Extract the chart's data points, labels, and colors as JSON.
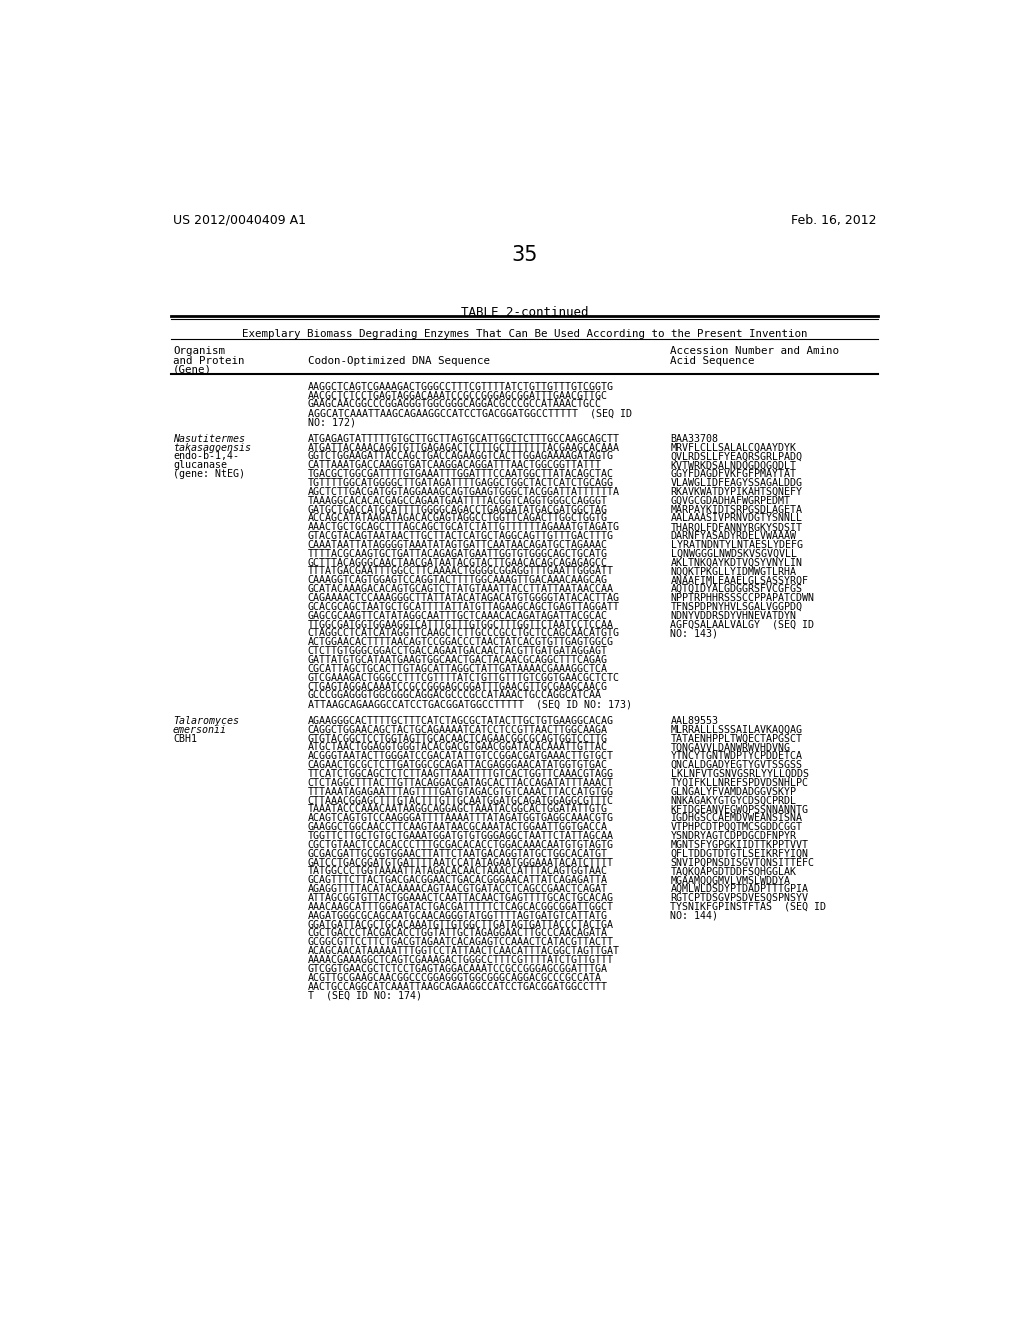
{
  "page_number": "35",
  "header_left": "US 2012/0040409 A1",
  "header_right": "Feb. 16, 2012",
  "table_title": "TABLE 2-continued",
  "table_subtitle": "Exemplary Biomass Degrading Enzymes That Can Be Used According to the Present Invention",
  "dna_lines_0": [
    "AAGGCTCAGTCGAAAGACTGGGCCTTTCGTTTTATCTGTTGTTTGTCGGTG",
    "AACGCTCTCCTGAGTAGGACAAATCCGCCGGGAGCGGATTTGAACGTTGC",
    "GAAGCAACGGCCCGGAGGGTGGCGGGCAGGACGCCCGCCATAAACTGCC",
    "AGGCATCAAATTAAGCAGAAGGCCATCCTGACGGATGGCCTTTTT  (SEQ ID",
    "NO: 172)"
  ],
  "org_2": [
    "Nasutitermes",
    "takasagoensis",
    "endo-b-1,4-",
    "glucanase",
    "(gene: NtEG)"
  ],
  "org_2_italic": [
    true,
    true,
    false,
    false,
    false
  ],
  "dna_lines_2": [
    "ATGAGAGTATTTTTGTGCTTGCTTAGTGCATTGGCTCTTTGCCAAGCAGCTT",
    "ATGATTACAAACAGGTGTTGAGAGACTCTTTGCTTTTTTTACGAAGCACAAA",
    "GGTCTGGAAGATTACCAGCTGACCAGAAGGTCACTTGGAGAAAAGATAGTG",
    "CATTAAATGACCAAGGTGATCAAGGACAGGATTTAACTGGCGGTTATTT",
    "TGACGCTGGCGATTTTGTGAAATTTGGATTTCCAATGGCTTATACAGCTAC",
    "TGTTTTGGCATGGGGCTTGATAGATTTTGAGGCTGGCTACTCATCTGCAGG",
    "AGCTCTTGACGATGGTAGGAAAGCAGTGAAGTGGGCTACGGATTATTTTTTA",
    "TAAAGGCACACACGAGCCAGAATGAATTTTACGGTCAGGTGGGCCAGGGT",
    "GATGCTGACCATGCATTTTGGGGCAGACCTGAGGATATGACGATGGCTAG",
    "ACCAGCATATAAGATAGACACGAGTAGGCCTGGTTCAGACTTGGCTGGTG",
    "AAACTGCTGCAGCTTTAGCAGCTGCATCTATTGTTTTTTAGAAATGTAGATG",
    "GTACGTACAGTAATAACTTGCTTACTCATGCTAGGCAGTTGTTTGACTTTG",
    "CAAATAATTATAGGGGTAAATATAGTGATTCAATAACAGATGCTAGAAAC",
    "TTTTACGCAAGTGCTGATTACAGAGATGAATTGGTGTGGGCAGCTGCATG",
    "GCTTTACAGGGCAACTAACGATAATACGTACTTGAACACAGCAGAGAGCC",
    "TTTATGACGAATTTGGCCTTCAAAACTGGGGCGGAGGTTTGAATTGGGATT",
    "CAAAGGTCAGTGGAGTCCAGGTACTTTTGGCAAAGTTGACAAACAAGCAG",
    "GCATACAAAGACACAGTGCAGTCTTATGTAAATTACCTTATTAATAACCAA",
    "CAGAAAACTCCAAAGGGCTTATTATACATAGACATGTGGGGTATACACTTAG",
    "GCACGCAGCTAATGCTGCATTTTATTATGTTAGAAGCAGCTGAGTTAGGATT",
    "GAGCGCAAGTTCATATAGGCAATTTGCTCAAACACAGATAGATTACGCAC",
    "TTGGCGATGGTGGAAGGTCATTTGTTTGTGGCTTTGGTTCTAATCCTCCAA",
    "CTAGGCCTCATCATAGGTTCAAGCTCTTGCCCGCCTGCTCCAGCAACATGTG",
    "ACTGGAACACTTTTAACAGTCCGGACCCTAACTATCACGTGTTGAGTGGCG",
    "CTCTTGTGGGCGGACCTGACCAGAATGACAACTACGTTGATGATAGGAGT",
    "GATTATGTGCATAATGAAGTGGCAACTGACTACAACGCAGGCTTTCAGAG",
    "CGCATTAGCTGCACTTGTAGCATTAGGCTATTGATAAAACGAAAGGCTCA",
    "GTCGAAAGACTGGGCCTTTCGTTTTATCTGTTGTTTGTCGGTGAACGCTCTC",
    "CTGAGTAGGACAAATCCGCCGGGAGCGGATTTGAACGTTGCGAAGCAACG",
    "GCCCGGAGGGTGGCGGGCAGGACGCCCGCCATAAACTGCCAGGCATCAA",
    "ATTAAGCAGAAGGCCATCCTGACGGATGGCCTTTTT  (SEQ ID NO: 173)"
  ],
  "acc_lines_2": [
    "BAA33708",
    "MRVFLCLLSALALCQAAYDYK",
    "QVLRDSLLFYEAQRSGRLPADQ",
    "KVTWRKDSALNDQGDQGQDLT",
    "GGYFDAGDFVKFGFPMAYTAT",
    "VLAWGLIDFEAGYSSAGALDDG",
    "RKAVKWATDYPIKAHTSQNEFY",
    "GQVGCGDADHAFWGRPEDMT",
    "MARPAYKIDTSRPGSDLAGETA",
    "AALAAASIVPRNVDGTYSNNLL",
    "THARQLFDFANNYRGKYSDSIT",
    "DARNFYASADYRDELVWAAAW",
    "LYRATNDNTYLNTAESLYDEFG",
    "LQNWGGGLNWDSKVSGVQVLL",
    "AKLTNKQAYKDTVQSYVNYLIN",
    "NQQKTPKGLLYIDMWGTLRHA",
    "ANAAFIMLEAAELGLSASSYRQF",
    "AQTQIDYALGDGGRSFVCGFGS",
    "NPPTRPHHRSSSCCPPAPATCDWN",
    "TFNSPDPNYHVLSGALVGGPDQ",
    "NDNYVDDRSDYVHNEVATDYN",
    "AGFQSALAALVALGY  (SEQ ID",
    "NO: 143)"
  ],
  "org_3": [
    "Talaromyces",
    "emersonii",
    "CBH1"
  ],
  "org_3_italic": [
    true,
    true,
    false
  ],
  "dna_lines_3": [
    "AGAAGGGCACTTTTGCTTTCATCTAGCGCTATACTTGCTGTGAAGGCACAG",
    "CAGGCTGGAACAGCTACTGCAGAAAATCATCCTCCGTTAACTTGGCAAGA",
    "GTGTACGGCTCCTGGTAGTTGCACAACTCAGAACGGCGCAGTGGTCCTTG",
    "ATGCTAACTGGAGGTGGGTACACGACGTGAACGGATACACAAATTGTTAC",
    "ACGGGTAATACTTGGGATCCGACATATTGTCCGGACGATGAAACTTGTGCT",
    "CAGAACTGCGCTCTTGATGGCGCAGATTACGAGGGAACATATGGTGTGAC",
    "TTCATCTGGCAGCTCTCTTAAGTTAAATTTTGTCACTGGTTCAAACGTAGG",
    "CTCTAGGCTTTACTTGTTACAGGACGATAGCACTTACCAGATATTTAAACT",
    "TTTAAATAGAGAATTTAGTTTTGATGTAGACGTGTCAAACTTACCATGTGG",
    "CTTAAACGGAGCTTTGTACTTTGTTGCAATGGATGCAGATGGAGGCGTTTC",
    "TAAATACCCAAACAATAAGGCAGGAGCTAAATACGGCACTGGATATTGTG",
    "ACAGTCAGTGTCCAAGGGATTTTAAAATTTATAGATGGTGAGGCAAACGTG",
    "GAAGGCTGGCAACCTTCAAGTAATAACGCAAATACTGGAATTGGTGACCA",
    "TGGTTCTTGCTGTGCTGAAATGGATGTGTGGGAGGCTAATTCTATTAGCAA",
    "CGCTGTAACTCCACACCCTTTGCGACACACCTGGACAAACAATGTGTAGTG",
    "GCGACGATTGCGGTGGAACTTATTCTAATGACAGGTATGCTGGCACATGT",
    "GATCCTGACGGATGTGATTTTAATCCATATAGAATGGGAAATACATCTTTT",
    "TATGGCCCTGGTAAAATTATAGACACAACTAAACCATTTACAGTGGTAAC",
    "GCAGTTTCTTACTGACGACGGAACTGACACGGGAACATTATCAGAGATTA",
    "AGAGGTTTTACATACAAAACAGTAACGTGATACCTCAGCCGAACTCAGAT",
    "ATTAGCGGTGTTACTGGAAACTCAATTACAACTGAGTTTTGCACTGCACAG",
    "AAACAAGCATTTGGAGATACTGACGATTTTTCTCAGCACGGCGGATTGGCT",
    "AAGATGGGCGCAGCAATGCAACAGGGTATGGTTTTAGTGATGTCATTATG",
    "GGATGATTACGCTGCACAAATGTTGTGGCTTGATAGTGATTACCCTACTGA",
    "CGCTGACCCTACGACACCTGGTATTGCTAGAGGAACTTGCCCAACAGATA",
    "GCGGCGTTCCTTCTGACGTAGAATCACAGAGTCCAAACTCATACGTTACTT",
    "ACAGCAACATAAAAATTTGGTCCTATTAACTCAACATTTACGGCTAGTTGAT",
    "AAAACGAAAGGCTCAGTCGAAAGACTGGGCCTTTCGTTTTATCTGTTGTTT",
    "GTCGGTGAACGCTCTCCTGAGTAGGACAAATCCGCCGGGAGCGGATTTGA",
    "ACGTTGCGAAGCAACGGCCCGGAGGGTGGCGGGCAGGACGCCCGCCATA",
    "AACTGCCAGGCATCAAATTAAGCAGAAGGCCATCCTGACGGATGGCCTTT",
    "T  (SEQ ID NO: 174)"
  ],
  "acc_lines_3": [
    "AAL89553",
    "MLRRALLLSSSAILAVKAQQAG",
    "TATAENHPPLTWQECTAPGSCT",
    "TQNGAVVLDANWRWVHDVNG",
    "YTNCYTGNTWDPTYCPDDETCA",
    "QNCALDGADYEGTYGVTSSGSS",
    "LKLNFVTGSNVGSRLYYLLQDDS",
    "TYQIFKLLNREFSPDVDSNHLPC",
    "GLNGALYFVAMDADGGVSKYP",
    "NNKAGAKYGTGYCDSQCPRDL",
    "KFIDGEANVEGWQPSSNNANNTG",
    "IGDHGSCCAEMDVWEANSISNA",
    "VTPHPCDTPQQTMCSGDDCGGT",
    "YSNDRYAGTCDPDGCDFNPYR",
    "MGNTSFYGPGKIIDTTKPPTVVT",
    "QFLTDDGTDTGTLSEIKRFYIQN",
    "SNVIPQPNSDISGVTQNSITTEFC",
    "TAQKQAPGDTDDFSQHGGLAK",
    "MGAAMQQGMVLVMSLWDDYA",
    "AQMLWLDSDYPTDADPTTTGPIA",
    "RGTCPTDSGVPSDVESQSPNSYV",
    "TYSNIKFGPINSTFTAS  (SEQ ID",
    "NO: 144)"
  ]
}
